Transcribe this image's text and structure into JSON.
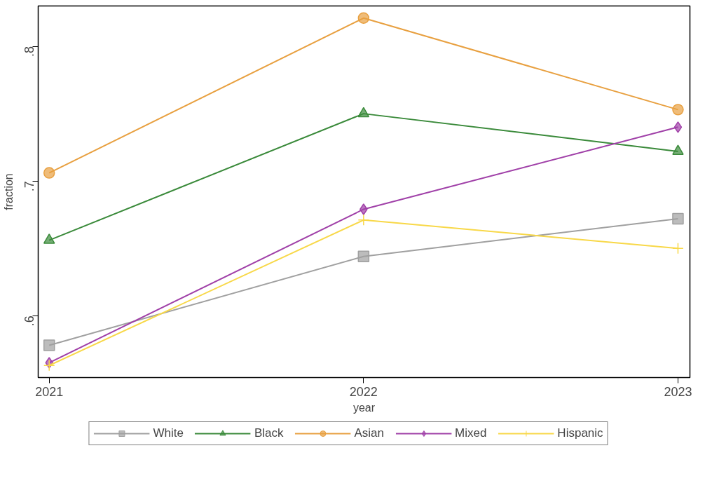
{
  "chart_data": {
    "type": "line",
    "xlabel": "year",
    "ylabel": "fraction",
    "x": [
      2021,
      2022,
      2023
    ],
    "xlim": [
      2020.965,
      2023.038
    ],
    "xticks": [
      2021,
      2022,
      2023
    ],
    "ylim": [
      0.554,
      0.83
    ],
    "yticks": [
      {
        "value": 0.6,
        "label": ".6"
      },
      {
        "value": 0.7,
        "label": ".7"
      },
      {
        "value": 0.8,
        "label": ".8"
      }
    ],
    "grid": false,
    "legend": "bottom",
    "line_style": "solid",
    "series": [
      {
        "name": "White",
        "color": "#a0a0a0",
        "marker": "square",
        "values": [
          0.578,
          0.644,
          0.672
        ]
      },
      {
        "name": "Black",
        "color": "#3a8a3a",
        "marker": "triangle",
        "values": [
          0.656,
          0.75,
          0.722
        ]
      },
      {
        "name": "Asian",
        "color": "#e8a040",
        "marker": "circle",
        "values": [
          0.706,
          0.821,
          0.753
        ]
      },
      {
        "name": "Mixed",
        "color": "#a040a8",
        "marker": "diamond",
        "values": [
          0.565,
          0.679,
          0.74
        ]
      },
      {
        "name": "Hispanic",
        "color": "#f8d848",
        "marker": "cross",
        "values": [
          0.563,
          0.671,
          0.65
        ]
      }
    ]
  }
}
